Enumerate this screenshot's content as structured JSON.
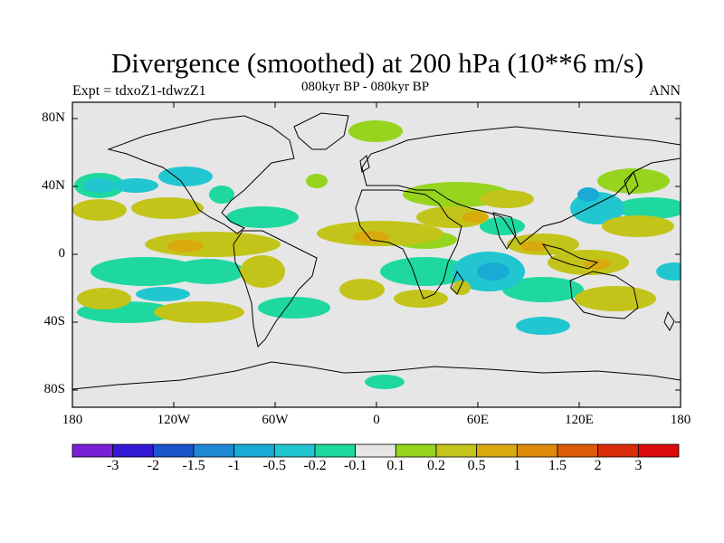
{
  "header": {
    "title": "Divergence (smoothed) at 200 hPa (10**6 m/s)",
    "expt": "Expt = tdxoZ1-tdwzZ1",
    "subtitle": "080kyr BP - 080kyr BP",
    "period": "ANN"
  },
  "axes": {
    "lat_labels": [
      "80N",
      "40N",
      "0",
      "40S",
      "80S"
    ],
    "lon_labels": [
      "180",
      "120W",
      "60W",
      "0",
      "60E",
      "120E",
      "180"
    ]
  },
  "colorbar": {
    "labels": [
      "-3",
      "-2",
      "-1.5",
      "-1",
      "-0.5",
      "-0.2",
      "-0.1",
      "0.1",
      "0.2",
      "0.5",
      "1",
      "1.5",
      "2",
      "3"
    ],
    "colors": [
      "#7a1fd8",
      "#3318d4",
      "#1a55cc",
      "#1e88d4",
      "#19aad6",
      "#22c6d0",
      "#1ed8a0",
      "#e6e6e6",
      "#96d41e",
      "#c3c41a",
      "#d8aa0e",
      "#dc8a0a",
      "#dc5a0a",
      "#d82c0a",
      "#dc0a0a"
    ]
  },
  "field_colors": {
    "land": "#000000",
    "ocean": "#e6e6e6"
  }
}
